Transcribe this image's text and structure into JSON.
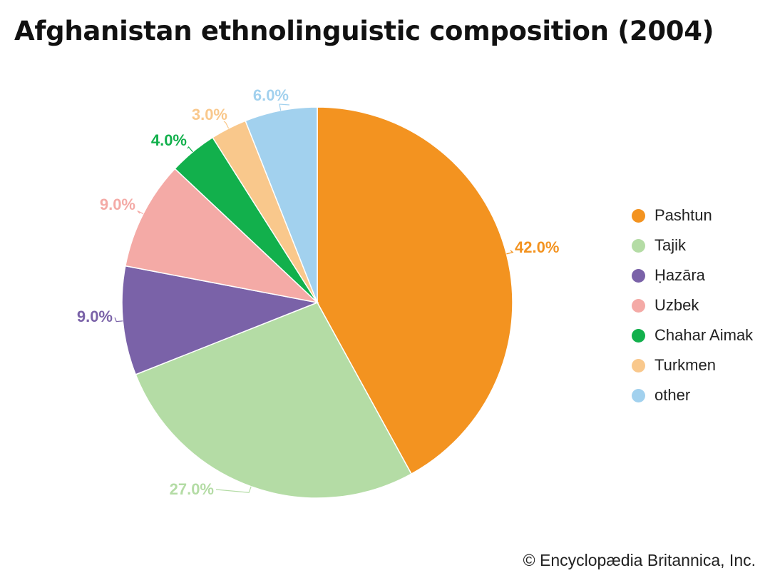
{
  "title": "Afghanistan ethnolinguistic composition (2004)",
  "credit": "© Encyclopædia Britannica, Inc.",
  "chart_data": {
    "type": "pie",
    "title": "Afghanistan ethnolinguistic composition (2004)",
    "start": "12 o'clock, clockwise",
    "slices": [
      {
        "name": "Pashtun",
        "value": 42.0,
        "label": "42.0%",
        "color": "#F39320"
      },
      {
        "name": "Tajik",
        "value": 27.0,
        "label": "27.0%",
        "color": "#B4DCA5"
      },
      {
        "name": "Ḥazāra",
        "value": 9.0,
        "label": "9.0%",
        "color": "#7A62A8"
      },
      {
        "name": "Uzbek",
        "value": 9.0,
        "label": "9.0%",
        "color": "#F4AAA6"
      },
      {
        "name": "Chahar Aimak",
        "value": 4.0,
        "label": "4.0%",
        "color": "#12B04C"
      },
      {
        "name": "Turkmen",
        "value": 3.0,
        "label": "3.0%",
        "color": "#F9C88C"
      },
      {
        "name": "other",
        "value": 6.0,
        "label": "6.0%",
        "color": "#A2D1EE"
      }
    ],
    "legend_position": "right"
  }
}
